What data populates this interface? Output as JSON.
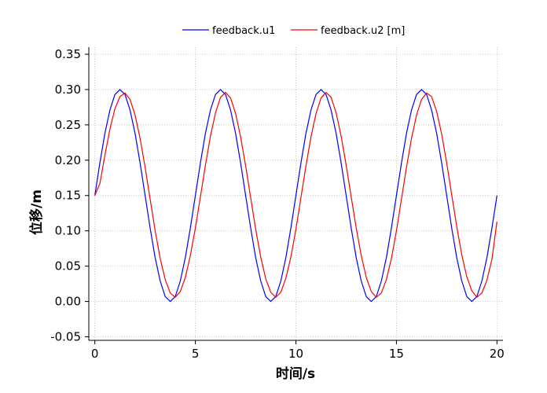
{
  "chart_data": {
    "type": "line",
    "title": "",
    "xlabel": "时间/s",
    "ylabel": "位移/m",
    "xlim": [
      -0.3,
      20.3
    ],
    "ylim": [
      -0.055,
      0.36
    ],
    "xticks": [
      0,
      5,
      10,
      15,
      20
    ],
    "xtick_labels": [
      "0",
      "5",
      "10",
      "15",
      "20"
    ],
    "yticks": [
      -0.05,
      0.0,
      0.05,
      0.1,
      0.15,
      0.2,
      0.25,
      0.3,
      0.35
    ],
    "ytick_labels": [
      "-0.05",
      "0.00",
      "0.05",
      "0.10",
      "0.15",
      "0.20",
      "0.25",
      "0.30",
      "0.35"
    ],
    "grid": true,
    "legend_position": "top-center",
    "series": [
      {
        "name": "feedback.u1",
        "color": "#0000ff",
        "x": [
          0,
          0.25,
          0.5,
          0.75,
          1.0,
          1.25,
          1.5,
          1.75,
          2.0,
          2.25,
          2.5,
          2.75,
          3.0,
          3.25,
          3.5,
          3.75,
          4.0,
          4.25,
          4.5,
          4.75,
          5.0,
          5.25,
          5.5,
          5.75,
          6.0,
          6.25,
          6.5,
          6.75,
          7.0,
          7.25,
          7.5,
          7.75,
          8.0,
          8.25,
          8.5,
          8.75,
          9.0,
          9.25,
          9.5,
          9.75,
          10.0,
          10.25,
          10.5,
          10.75,
          11.0,
          11.25,
          11.5,
          11.75,
          12.0,
          12.25,
          12.5,
          12.75,
          13.0,
          13.25,
          13.5,
          13.75,
          14.0,
          14.25,
          14.5,
          14.75,
          15.0,
          15.25,
          15.5,
          15.75,
          16.0,
          16.25,
          16.5,
          16.75,
          17.0,
          17.25,
          17.5,
          17.75,
          18.0,
          18.25,
          18.5,
          18.75,
          19.0,
          19.25,
          19.5,
          19.75,
          20.0
        ],
        "y": [
          0.15,
          0.196,
          0.238,
          0.271,
          0.293,
          0.3,
          0.293,
          0.271,
          0.238,
          0.196,
          0.15,
          0.104,
          0.062,
          0.029,
          0.007,
          0.0,
          0.007,
          0.029,
          0.062,
          0.104,
          0.15,
          0.196,
          0.238,
          0.271,
          0.293,
          0.3,
          0.293,
          0.271,
          0.238,
          0.196,
          0.15,
          0.104,
          0.062,
          0.029,
          0.007,
          0.0,
          0.007,
          0.029,
          0.062,
          0.104,
          0.15,
          0.196,
          0.238,
          0.271,
          0.293,
          0.3,
          0.293,
          0.271,
          0.238,
          0.196,
          0.15,
          0.104,
          0.062,
          0.029,
          0.007,
          0.0,
          0.007,
          0.029,
          0.062,
          0.104,
          0.15,
          0.196,
          0.238,
          0.271,
          0.293,
          0.3,
          0.293,
          0.271,
          0.238,
          0.196,
          0.15,
          0.104,
          0.062,
          0.029,
          0.007,
          0.0,
          0.007,
          0.029,
          0.062,
          0.104,
          0.15
        ]
      },
      {
        "name": "feedback.u2 [m]",
        "color": "#ff0000",
        "x": [
          0,
          0.25,
          0.5,
          0.75,
          1.0,
          1.25,
          1.5,
          1.75,
          2.0,
          2.25,
          2.5,
          2.75,
          3.0,
          3.25,
          3.5,
          3.75,
          4.0,
          4.25,
          4.5,
          4.75,
          5.0,
          5.25,
          5.5,
          5.75,
          6.0,
          6.25,
          6.5,
          6.75,
          7.0,
          7.25,
          7.5,
          7.75,
          8.0,
          8.25,
          8.5,
          8.75,
          9.0,
          9.25,
          9.5,
          9.75,
          10.0,
          10.25,
          10.5,
          10.75,
          11.0,
          11.25,
          11.5,
          11.75,
          12.0,
          12.25,
          12.5,
          12.75,
          13.0,
          13.25,
          13.5,
          13.75,
          14.0,
          14.25,
          14.5,
          14.75,
          15.0,
          15.25,
          15.5,
          15.75,
          16.0,
          16.25,
          16.5,
          16.75,
          17.0,
          17.25,
          17.5,
          17.75,
          18.0,
          18.25,
          18.5,
          18.75,
          19.0,
          19.25,
          19.5,
          19.75,
          20.0
        ],
        "y": [
          0.15,
          0.167,
          0.207,
          0.244,
          0.273,
          0.29,
          0.295,
          0.286,
          0.264,
          0.231,
          0.19,
          0.145,
          0.1,
          0.061,
          0.031,
          0.012,
          0.006,
          0.014,
          0.034,
          0.065,
          0.104,
          0.148,
          0.193,
          0.234,
          0.267,
          0.289,
          0.296,
          0.288,
          0.266,
          0.233,
          0.192,
          0.147,
          0.102,
          0.063,
          0.032,
          0.013,
          0.006,
          0.013,
          0.033,
          0.063,
          0.102,
          0.147,
          0.192,
          0.233,
          0.266,
          0.288,
          0.296,
          0.289,
          0.267,
          0.234,
          0.193,
          0.148,
          0.104,
          0.065,
          0.034,
          0.014,
          0.006,
          0.012,
          0.031,
          0.061,
          0.1,
          0.145,
          0.19,
          0.231,
          0.264,
          0.286,
          0.295,
          0.29,
          0.269,
          0.237,
          0.196,
          0.151,
          0.106,
          0.066,
          0.035,
          0.015,
          0.006,
          0.012,
          0.03,
          0.06,
          0.113
        ]
      }
    ]
  }
}
